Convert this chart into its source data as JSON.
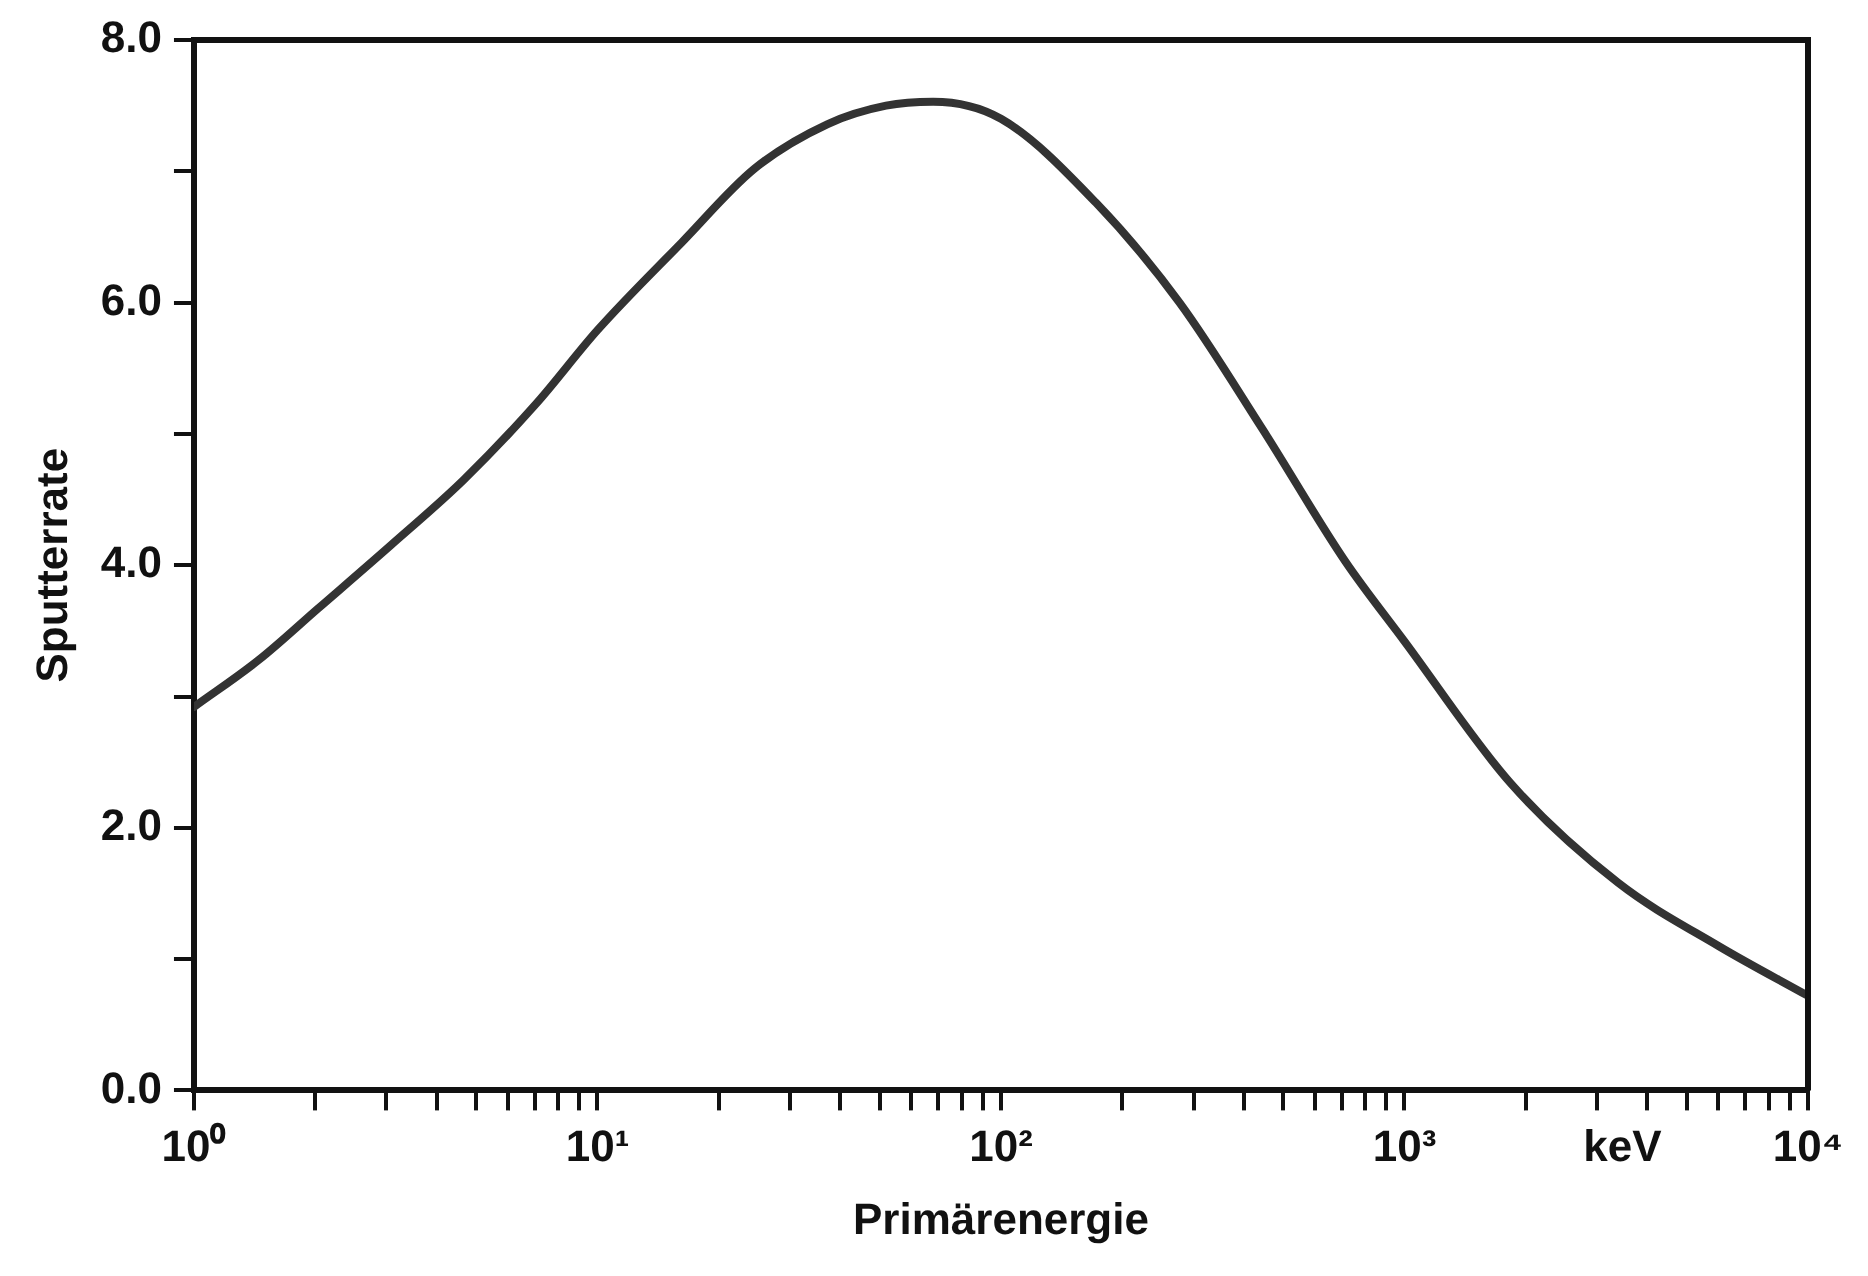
{
  "chart_data": {
    "type": "line",
    "xlabel": "Primärenergie",
    "ylabel": "Sputterrate",
    "log": "x",
    "grid": false,
    "legend": false,
    "marker": "none",
    "line_style": "solid",
    "annotations": [
      "keV"
    ],
    "xlim": [
      1,
      10000
    ],
    "xticks": [
      {
        "value": 1,
        "label": "10⁰"
      },
      {
        "value": 2,
        "label": null
      },
      {
        "value": 3,
        "label": null
      },
      {
        "value": 4,
        "label": null
      },
      {
        "value": 5,
        "label": null
      },
      {
        "value": 6,
        "label": null
      },
      {
        "value": 7,
        "label": null
      },
      {
        "value": 8,
        "label": null
      },
      {
        "value": 9,
        "label": null
      },
      {
        "value": 10,
        "label": "10¹"
      },
      {
        "value": 20,
        "label": null
      },
      {
        "value": 30,
        "label": null
      },
      {
        "value": 40,
        "label": null
      },
      {
        "value": 50,
        "label": null
      },
      {
        "value": 60,
        "label": null
      },
      {
        "value": 70,
        "label": null
      },
      {
        "value": 80,
        "label": null
      },
      {
        "value": 90,
        "label": null
      },
      {
        "value": 100,
        "label": "10²"
      },
      {
        "value": 200,
        "label": null
      },
      {
        "value": 300,
        "label": null
      },
      {
        "value": 400,
        "label": null
      },
      {
        "value": 500,
        "label": null
      },
      {
        "value": 600,
        "label": null
      },
      {
        "value": 700,
        "label": null
      },
      {
        "value": 800,
        "label": null
      },
      {
        "value": 900,
        "label": null
      },
      {
        "value": 1000,
        "label": "10³"
      },
      {
        "value": 2000,
        "label": null
      },
      {
        "value": 3000,
        "label": null
      },
      {
        "value": 4000,
        "label": null
      },
      {
        "value": 5000,
        "label": null
      },
      {
        "value": 6000,
        "label": null
      },
      {
        "value": 7000,
        "label": null
      },
      {
        "value": 8000,
        "label": null
      },
      {
        "value": 9000,
        "label": null
      },
      {
        "value": 10000,
        "label": "10⁴"
      }
    ],
    "ylim": [
      0,
      8
    ],
    "yticks": [
      {
        "value": 0,
        "label": "0.0"
      },
      {
        "value": 1,
        "label": null
      },
      {
        "value": 2,
        "label": "2.0"
      },
      {
        "value": 3,
        "label": null
      },
      {
        "value": 4,
        "label": "4.0"
      },
      {
        "value": 5,
        "label": null
      },
      {
        "value": 6,
        "label": "6.0"
      },
      {
        "value": 7,
        "label": null
      },
      {
        "value": 8,
        "label": "8.0"
      }
    ],
    "series": [
      {
        "color": "#333333",
        "x": [
          1,
          1.45,
          2.03,
          3.07,
          4.66,
          7.05,
          10,
          16.2,
          24.5,
          37.2,
          51.9,
          67.9,
          100,
          172,
          277,
          444,
          713,
          1000,
          1832,
          3388,
          6000,
          10000
        ],
        "values": [
          2.92,
          3.28,
          3.67,
          4.15,
          4.65,
          5.23,
          5.79,
          6.46,
          7.02,
          7.36,
          7.5,
          7.53,
          7.4,
          6.76,
          6.0,
          5.04,
          4.03,
          3.42,
          2.34,
          1.58,
          1.1,
          0.72
        ]
      }
    ]
  }
}
